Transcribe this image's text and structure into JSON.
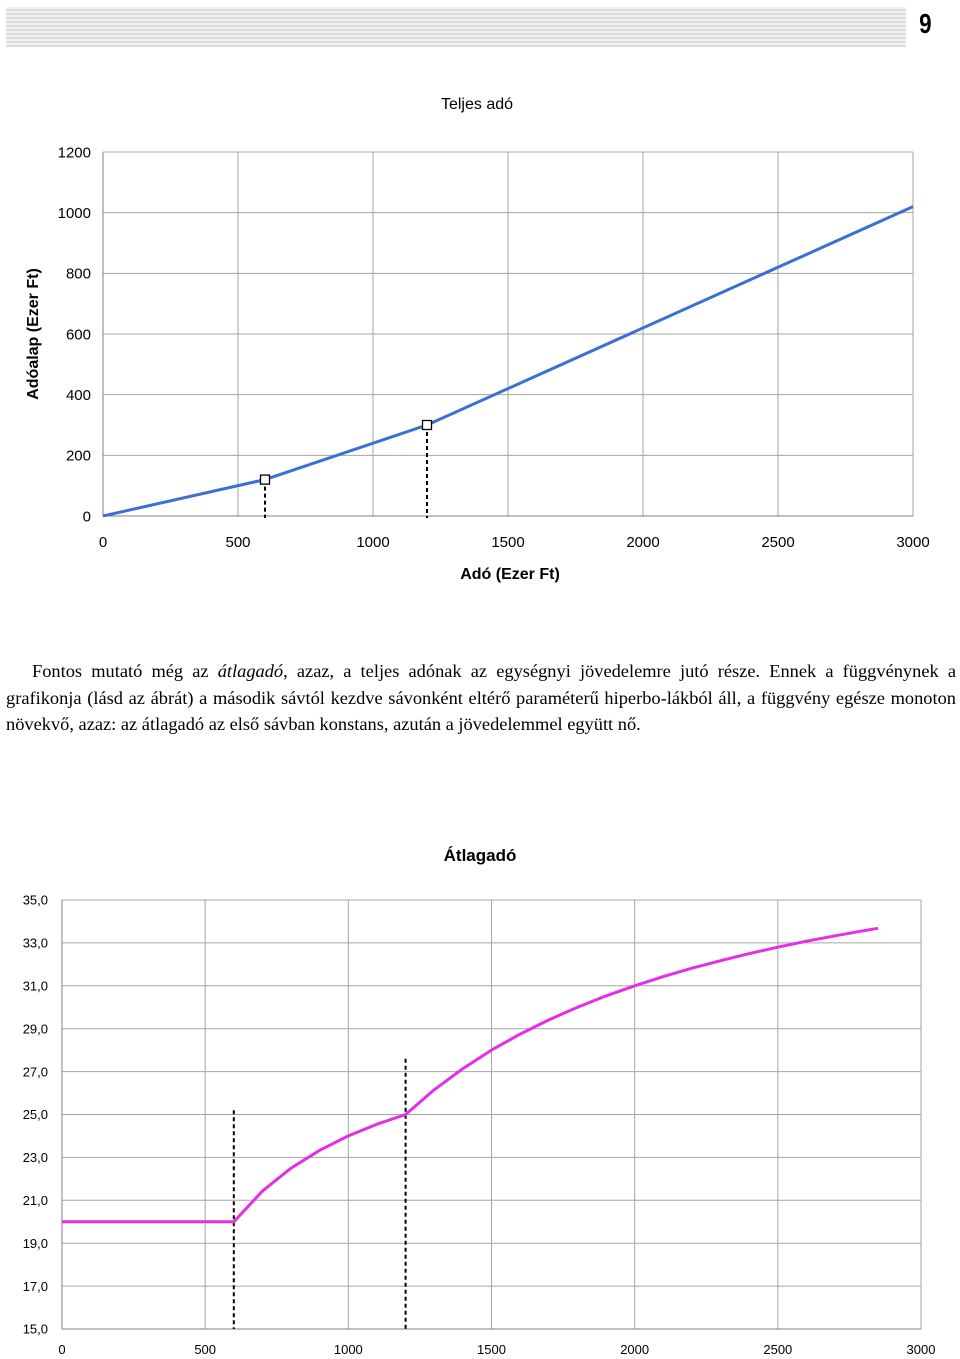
{
  "page": {
    "number": "9"
  },
  "chart_top": {
    "chart_data": {
      "type": "line",
      "title": "Teljes adó",
      "xlabel": "Adó (Ezer Ft)",
      "ylabel": "Adóalap  (Ezer Ft)",
      "xlim": [
        0,
        3000
      ],
      "ylim": [
        0,
        1200
      ],
      "x_ticks": [
        "0",
        "500",
        "1000",
        "1500",
        "2000",
        "2500",
        "3000"
      ],
      "y_ticks": [
        "0",
        "200",
        "400",
        "600",
        "800",
        "1000",
        "1200"
      ],
      "grid": true,
      "legend": "none",
      "series": [
        {
          "x": [
            0,
            600,
            1200,
            3000
          ],
          "y": [
            0,
            120,
            300,
            1020
          ]
        }
      ],
      "markers": [
        {
          "x": 600,
          "y": 120
        },
        {
          "x": 1200,
          "y": 300
        }
      ],
      "dashed_verticals": [
        600,
        1200
      ],
      "line_color": "#3b6fd4",
      "grid_color": "#a6a6a6"
    }
  },
  "paragraph": {
    "p1_before": "Fontos mutató még az ",
    "p1_em": "átlagadó",
    "p1_after": ", azaz, a teljes adónak az egységnyi jövedelemre jutó része. Ennek a függvénynek a grafikonja (lásd az ábrát) a második sávtól kezdve sávonként eltérő paraméterű hiperbo-lákból áll, a függvény egésze monoton növekvő, azaz: az átlagadó az első sávban konstans, azután a jövedelemmel együtt nő."
  },
  "chart_bottom": {
    "chart_data": {
      "type": "line",
      "title": "Átlagadó",
      "xlim": [
        0,
        3000
      ],
      "ylim": [
        15,
        35
      ],
      "x_ticks": [
        "0",
        "500",
        "1000",
        "1500",
        "2000",
        "2500",
        "3000"
      ],
      "y_ticks": [
        "15,0",
        "17,0",
        "19,0",
        "21,0",
        "23,0",
        "25,0",
        "27,0",
        "29,0",
        "31,0",
        "33,0",
        "35,0"
      ],
      "grid": true,
      "legend": "none",
      "series": [
        {
          "x": [
            0,
            600,
            700,
            800,
            900,
            1000,
            1100,
            1200,
            1300,
            1400,
            1500,
            1600,
            1700,
            1800,
            1900,
            2000,
            2100,
            2200,
            2300,
            2400,
            2500,
            2600,
            2700,
            2800,
            2850
          ],
          "y": [
            20,
            20,
            21.43,
            22.5,
            23.33,
            24,
            24.55,
            25,
            26.15,
            27.14,
            28,
            28.75,
            29.41,
            30,
            30.53,
            31,
            31.43,
            31.82,
            32.17,
            32.5,
            32.8,
            33.08,
            33.33,
            33.57,
            33.68
          ]
        }
      ],
      "dashed_verticals": [
        {
          "x": 600,
          "y_top": 25.2
        },
        {
          "x": 1200,
          "y_top": 27.6
        }
      ],
      "line_color": "#e52ee5",
      "grid_color": "#a6a6a6"
    }
  }
}
